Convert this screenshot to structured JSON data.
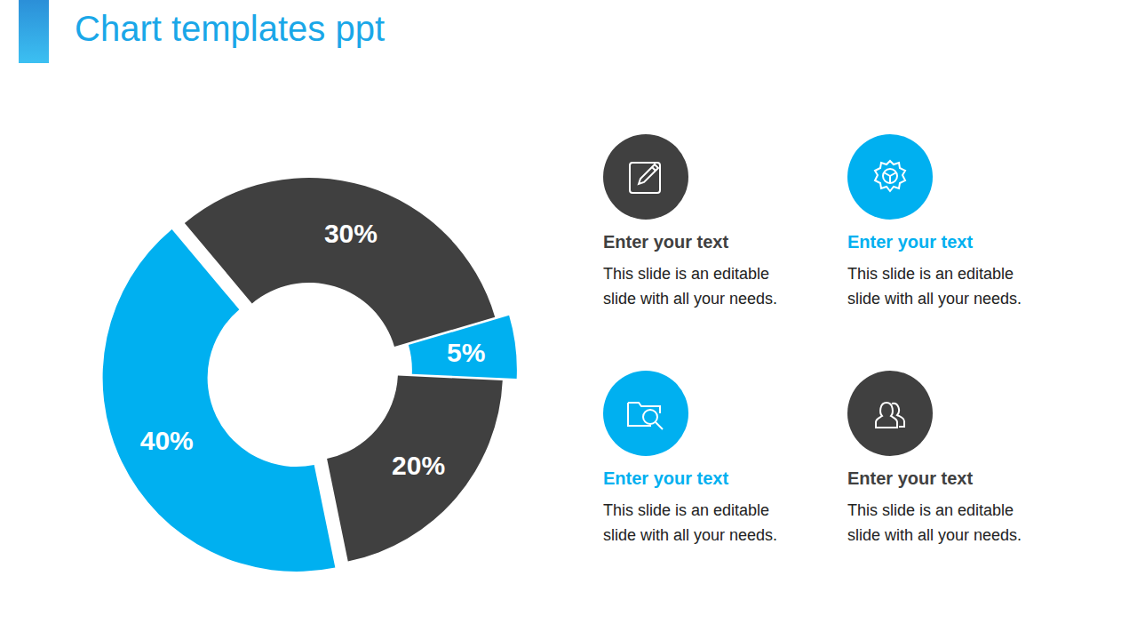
{
  "title": "Chart templates ppt",
  "chart_data": {
    "type": "pie",
    "donut": true,
    "values": [
      30,
      5,
      20,
      40
    ],
    "value_labels": [
      "30%",
      "5%",
      "20%",
      "40%"
    ],
    "colors": [
      "#404040",
      "#00b0f0",
      "#404040",
      "#00b0f0"
    ],
    "data_labels": true
  },
  "cards": [
    {
      "heading": "Enter your text",
      "body": "This slide is an editable slide with all your needs.",
      "color": "#404040"
    },
    {
      "heading": "Enter your text",
      "body": "This slide is an editable slide with all your needs.",
      "color": "#00b0f0"
    },
    {
      "heading": "Enter your text",
      "body": "This slide is an editable slide with all your needs.",
      "color": "#00b0f0"
    },
    {
      "heading": "Enter your text",
      "body": "This slide is an editable slide with all your needs.",
      "color": "#404040"
    }
  ]
}
